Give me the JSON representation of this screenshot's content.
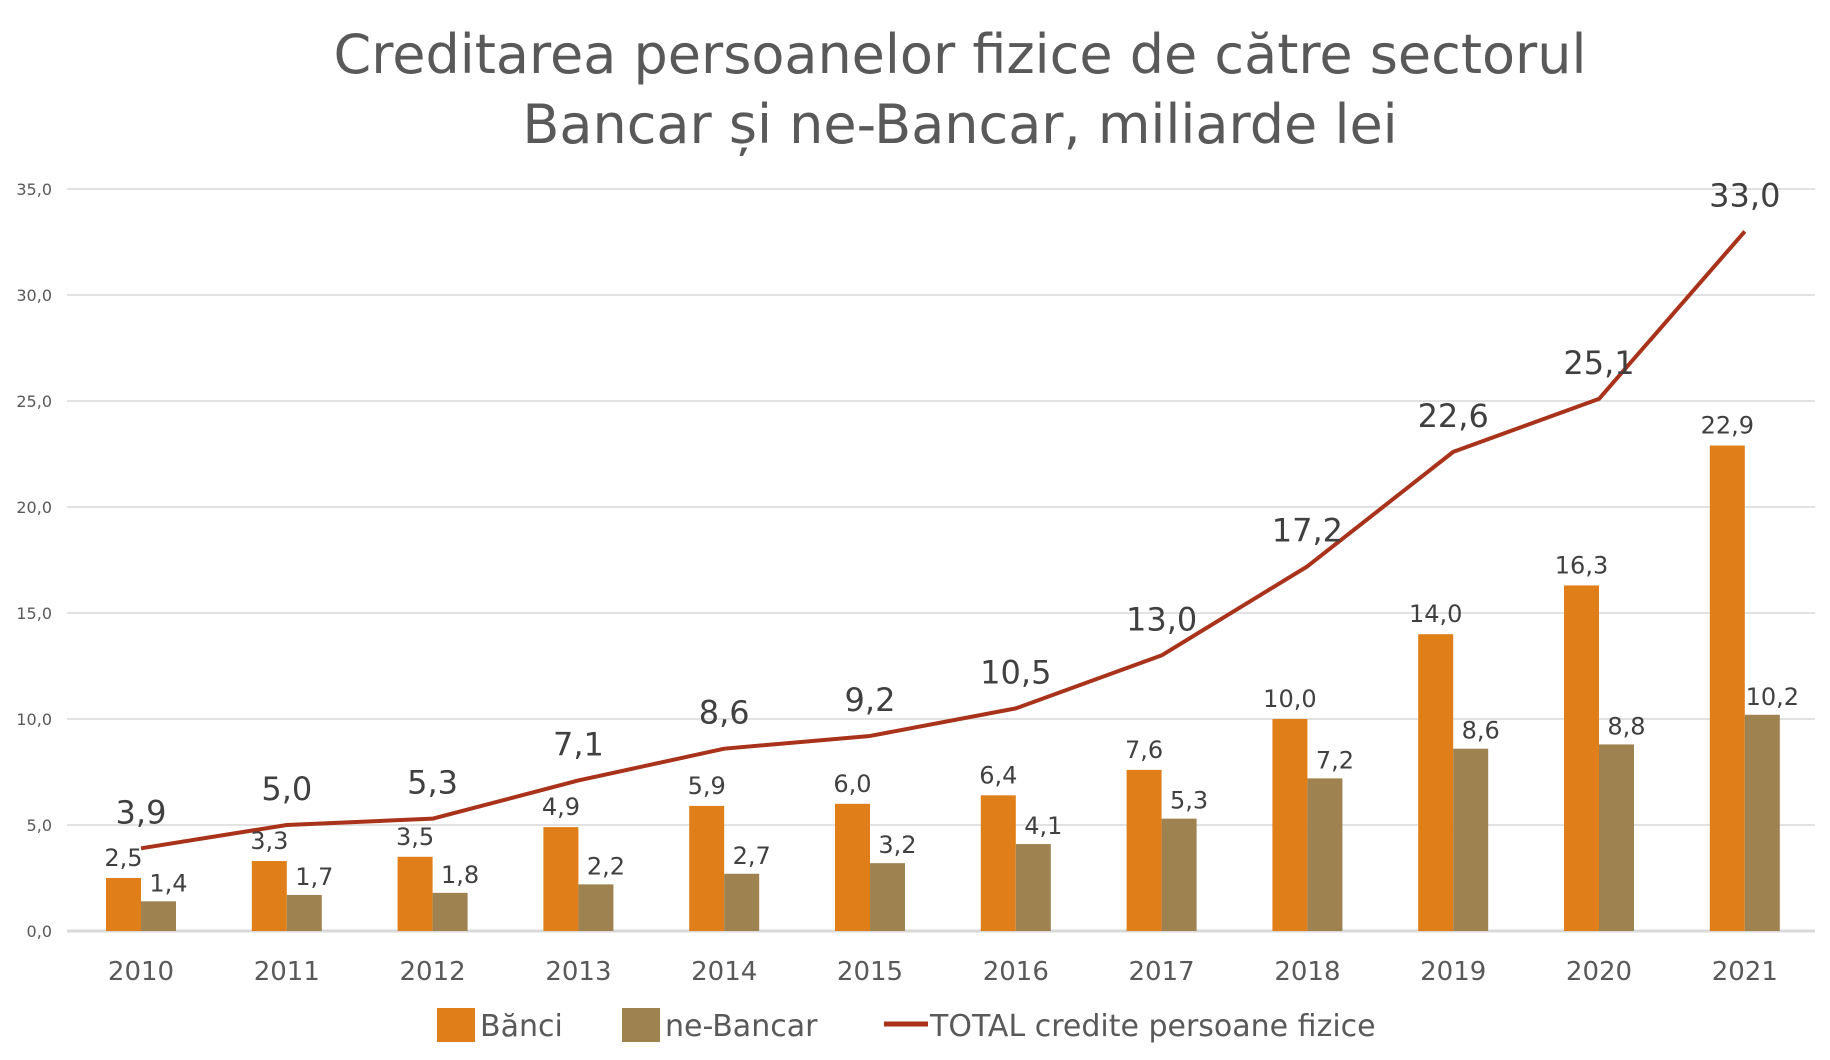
{
  "chart_data": {
    "type": "bar",
    "title_lines": [
      "Creditarea persoanelor fizice de către sectorul",
      "Bancar și ne-Bancar, miliarde lei"
    ],
    "categories": [
      "2010",
      "2011",
      "2012",
      "2013",
      "2014",
      "2015",
      "2016",
      "2017",
      "2018",
      "2019",
      "2020",
      "2021"
    ],
    "series": [
      {
        "name": "Bănci",
        "kind": "bar",
        "color": "#E07E1A",
        "values": [
          2.5,
          3.3,
          3.5,
          4.9,
          5.9,
          6.0,
          6.4,
          7.6,
          10.0,
          14.0,
          16.3,
          22.9
        ],
        "labels": [
          "2,5",
          "3,3",
          "3,5",
          "4,9",
          "5,9",
          "6,0",
          "6,4",
          "7,6",
          "10,0",
          "14,0",
          "16,3",
          "22,9"
        ]
      },
      {
        "name": "ne-Bancar",
        "kind": "bar",
        "color": "#9E8250",
        "values": [
          1.4,
          1.7,
          1.8,
          2.2,
          2.7,
          3.2,
          4.1,
          5.3,
          7.2,
          8.6,
          8.8,
          10.2
        ],
        "labels": [
          "1,4",
          "1,7",
          "1,8",
          "2,2",
          "2,7",
          "3,2",
          "4,1",
          "5,3",
          "7,2",
          "8,6",
          "8,8",
          "10,2"
        ]
      },
      {
        "name": "TOTAL credite persoane fizice",
        "kind": "line",
        "color": "#A8321A",
        "values": [
          3.9,
          5.0,
          5.3,
          7.1,
          8.6,
          9.2,
          10.5,
          13.0,
          17.2,
          22.6,
          25.1,
          33.0
        ],
        "labels": [
          "3,9",
          "5,0",
          "5,3",
          "7,1",
          "8,6",
          "9,2",
          "10,5",
          "13,0",
          "17,2",
          "22,6",
          "25,1",
          "33,0"
        ]
      }
    ],
    "ylim": [
      0,
      35
    ],
    "yticks": [
      "0,0",
      "5,0",
      "10,0",
      "15,0",
      "20,0",
      "25,0",
      "30,0",
      "35,0"
    ],
    "xlabel": "",
    "ylabel": "",
    "grid": true,
    "legend": "bottom"
  }
}
